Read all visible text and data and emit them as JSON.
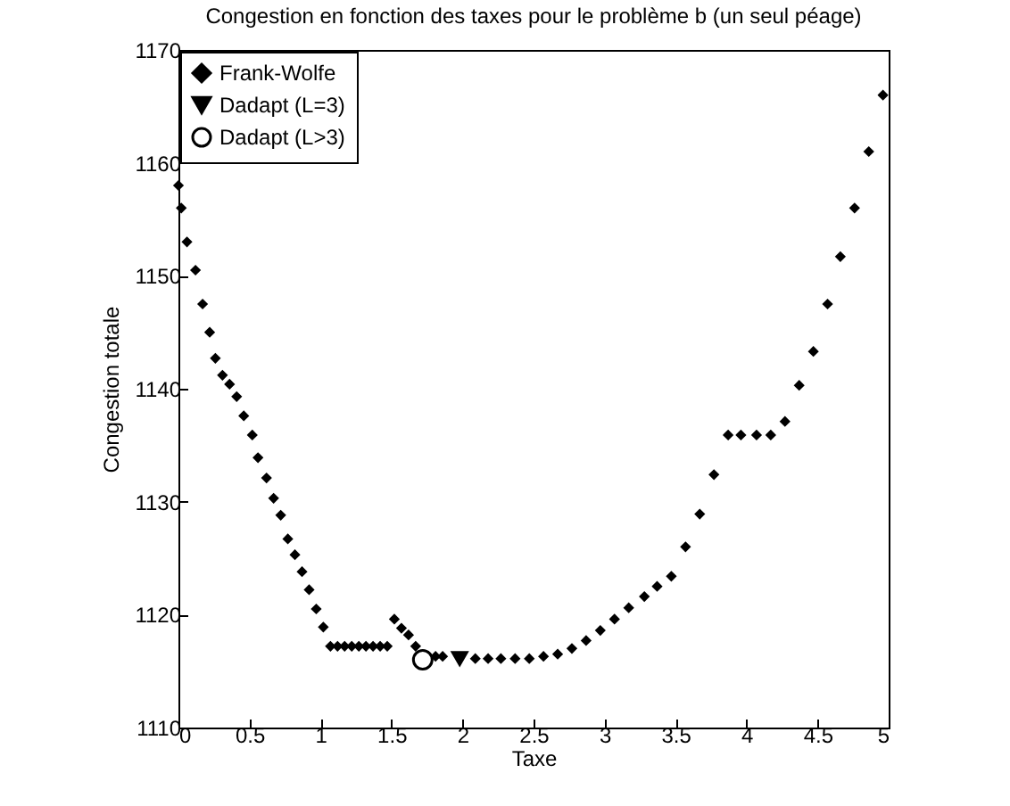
{
  "chart_data": {
    "type": "scatter",
    "title": "Congestion en fonction des taxes pour le problème b (un seul péage)",
    "xlabel": "Taxe",
    "ylabel": "Congestion totale",
    "xlim": [
      0,
      5
    ],
    "xticks": [
      0,
      0.5,
      1,
      1.5,
      2,
      2.5,
      3,
      3.5,
      4,
      4.5,
      5
    ],
    "ylim": [
      1110,
      1170
    ],
    "yticks": [
      1110,
      1120,
      1130,
      1140,
      1150,
      1160,
      1170
    ],
    "legend": "top left",
    "grid": false,
    "series": [
      {
        "name": "Frank-Wolfe",
        "color": "#000000",
        "marker": "diamond",
        "x": [
          0,
          0.02,
          0.06,
          0.12,
          0.17,
          0.22,
          0.26,
          0.31,
          0.36,
          0.41,
          0.46,
          0.52,
          0.56,
          0.62,
          0.67,
          0.72,
          0.77,
          0.82,
          0.87,
          0.92,
          0.97,
          1.02,
          1.07,
          1.12,
          1.17,
          1.22,
          1.27,
          1.32,
          1.37,
          1.42,
          1.47,
          1.52,
          1.57,
          1.62,
          1.67,
          1.76,
          1.81,
          1.86,
          2.09,
          2.18,
          2.27,
          2.37,
          2.47,
          2.57,
          2.67,
          2.77,
          2.87,
          2.97,
          3.07,
          3.17,
          3.28,
          3.37,
          3.47,
          3.57,
          3.67,
          3.77,
          3.87,
          3.96,
          4.07,
          4.17,
          4.27,
          4.37,
          4.47,
          4.57,
          4.66,
          4.76,
          4.86,
          4.96
        ],
        "values": [
          1158,
          1156,
          1153,
          1150.5,
          1147.5,
          1145,
          1142.7,
          1141.2,
          1140.4,
          1139.3,
          1137.6,
          1135.9,
          1133.9,
          1132.1,
          1130.3,
          1128.8,
          1126.7,
          1125.3,
          1123.8,
          1122.2,
          1120.5,
          1118.9,
          1117.2,
          1117.2,
          1117.2,
          1117.2,
          1117.2,
          1117.2,
          1117.2,
          1117.2,
          1117.2,
          1119.6,
          1118.8,
          1118.2,
          1117.2,
          1116.3,
          1116.3,
          1116.3,
          1116.1,
          1116.1,
          1116.1,
          1116.1,
          1116.1,
          1116.3,
          1116.5,
          1117,
          1117.7,
          1118.6,
          1119.6,
          1120.6,
          1121.6,
          1122.5,
          1123.4,
          1126,
          1128.9,
          1132.4,
          1135.9,
          1135.9,
          1135.9,
          1135.9,
          1137.1,
          1140.3,
          1143.3,
          1147.5,
          1151.7,
          1156,
          1161,
          1166
        ]
      },
      {
        "name": "Dadapt (L=3)",
        "color": "#000000",
        "marker": "triangle",
        "x": [
          1.98
        ],
        "values": [
          1116.1
        ]
      },
      {
        "name": "Dadapt (L>3)",
        "color": "#000000",
        "marker": "circle",
        "x": [
          1.72
        ],
        "values": [
          1116
        ]
      }
    ]
  }
}
